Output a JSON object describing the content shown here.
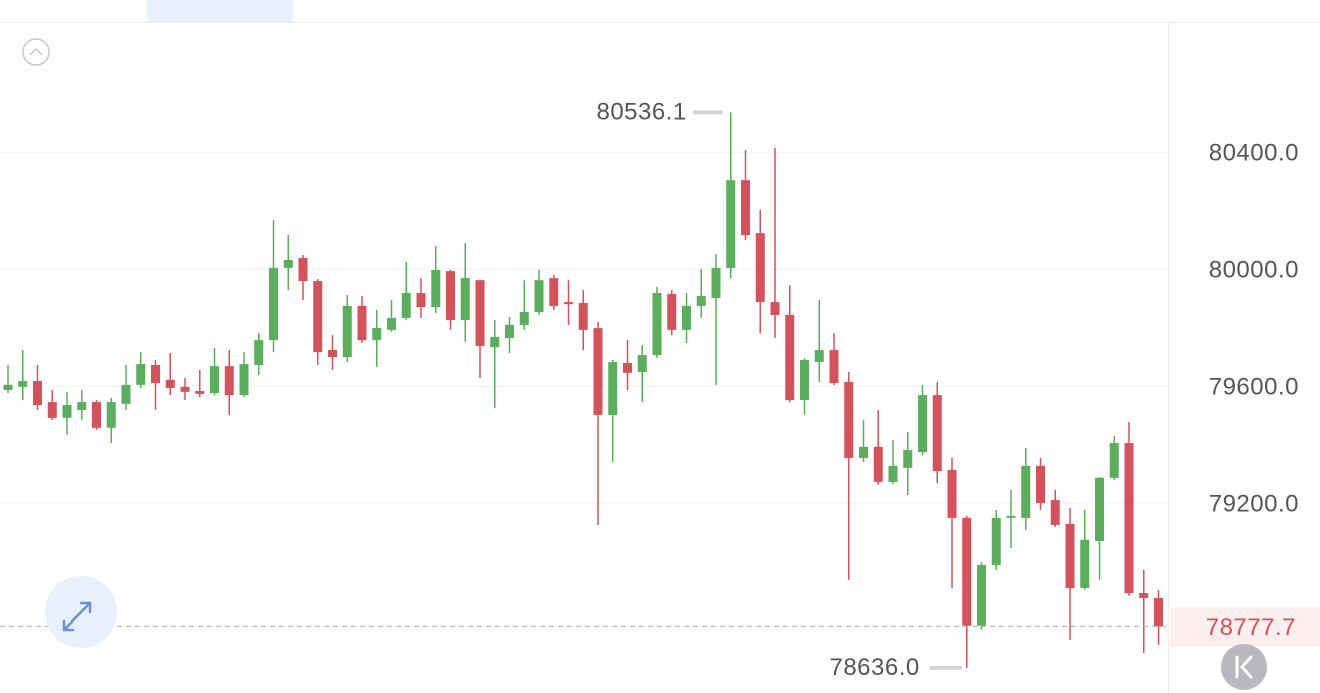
{
  "chart_data": {
    "type": "candlestick",
    "up_color": "#5aaf5c",
    "down_color": "#d6525a",
    "ylim": [
      78550,
      80845
    ],
    "yticks": [
      {
        "value": 80400,
        "label": "80400.0"
      },
      {
        "value": 80000,
        "label": "80000.0"
      },
      {
        "value": 79600,
        "label": "79600.0"
      },
      {
        "value": 79200,
        "label": "79200.0"
      }
    ],
    "grid": true,
    "low_label": "78636.0",
    "open": [
      79586,
      79597,
      79617,
      79545,
      79491,
      79518,
      79545,
      79457,
      79539,
      79604,
      79672,
      79621,
      79597,
      79583,
      79576,
      79668,
      79569,
      79672,
      79757,
      80004,
      80038,
      79959,
      79723,
      79699,
      79874,
      79757,
      79792,
      79833,
      79918,
      79870,
      79993,
      79826,
      79962,
      79733,
      79764,
      79809,
      79853,
      79969,
      79887,
      79884,
      79798,
      79501,
      79679,
      79648,
      79706,
      79915,
      79792,
      79874,
      79901,
      80004,
      80304,
      80123,
      79887,
      79843,
      79552,
      79682,
      79723,
      79614,
      79354,
      79392,
      79272,
      79320,
      79374,
      79569,
      79313,
      79149,
      78780,
      78988,
      79149,
      79149,
      79327,
      79210,
      79128,
      78909,
      79070,
      79286,
      79405,
      78892,
      78875
    ],
    "high": [
      79672,
      79723,
      79672,
      79586,
      79580,
      79586,
      79552,
      79559,
      79672,
      79716,
      79689,
      79713,
      79627,
      79655,
      79730,
      79723,
      79716,
      79781,
      80168,
      80116,
      80048,
      79966,
      79774,
      79911,
      79908,
      79860,
      79894,
      80024,
      79969,
      80079,
      79997,
      80089,
      79962,
      79826,
      79836,
      79962,
      79997,
      79980,
      79962,
      79928,
      79819,
      79689,
      79757,
      79740,
      79939,
      79928,
      79918,
      80000,
      80051,
      80536.1,
      80407,
      80202,
      80414,
      79945,
      79696,
      79894,
      79781,
      79648,
      79484,
      79518,
      79415,
      79443,
      79604,
      79614,
      79354,
      79156,
      78998,
      79176,
      79245,
      79388,
      79354,
      79245,
      79183,
      79176,
      79289,
      79429,
      79477,
      78971,
      78903
    ],
    "low": [
      79576,
      79552,
      79518,
      79484,
      79433,
      79484,
      79450,
      79405,
      79518,
      79593,
      79518,
      79569,
      79552,
      79562,
      79569,
      79501,
      79562,
      79638,
      79716,
      79928,
      79894,
      79672,
      79655,
      79682,
      79747,
      79665,
      79785,
      79826,
      79833,
      79850,
      79792,
      79751,
      79627,
      79525,
      79713,
      79792,
      79843,
      79860,
      79809,
      79723,
      79125,
      79340,
      79586,
      79545,
      79696,
      79774,
      79747,
      79833,
      79604,
      79969,
      80099,
      79781,
      79764,
      79545,
      79501,
      79614,
      79604,
      78937,
      79340,
      79262,
      79265,
      79227,
      79364,
      79268,
      78909,
      78636,
      78766,
      78971,
      79046,
      79108,
      79176,
      79118,
      78732,
      78903,
      78937,
      79279,
      78882,
      78687,
      78715
    ],
    "close": [
      79604,
      79617,
      79535,
      79491,
      79535,
      79545,
      79457,
      79545,
      79604,
      79675,
      79610,
      79593,
      79580,
      79573,
      79668,
      79569,
      79675,
      79757,
      80004,
      80031,
      79959,
      79716,
      79699,
      79874,
      79757,
      79798,
      79833,
      79918,
      79870,
      79997,
      79826,
      79969,
      79737,
      79768,
      79809,
      79853,
      79962,
      79874,
      79880,
      79792,
      79501,
      79682,
      79645,
      79706,
      79918,
      79792,
      79874,
      79908,
      80004,
      80304,
      80116,
      79887,
      79843,
      79552,
      79689,
      79723,
      79610,
      79354,
      79392,
      79272,
      79327,
      79381,
      79569,
      79309,
      79149,
      78780,
      78988,
      79149,
      79156,
      79327,
      79200,
      79125,
      78909,
      79074,
      79286,
      79405,
      78892,
      78875,
      78777.7
    ]
  }
}
